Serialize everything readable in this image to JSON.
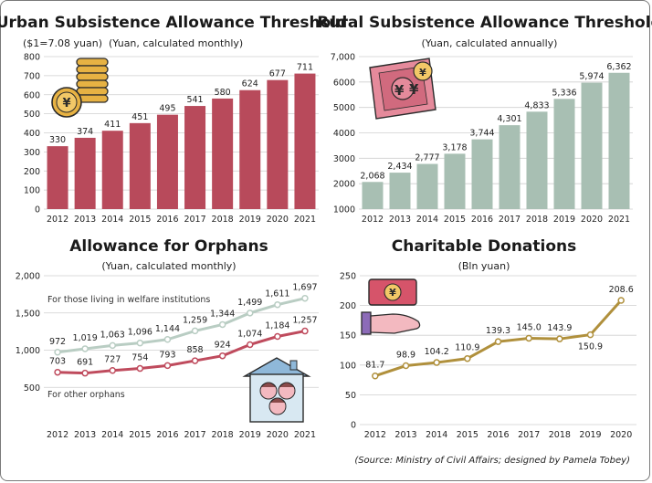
{
  "source_note": "(Source: Ministry of Civil Affairs; designed by Pamela Tobey)",
  "colors": {
    "urban_bar": "#b84a5b",
    "rural_bar": "#a8bfb3",
    "welfare_line": "#b9cdc3",
    "other_line": "#bf4b5d",
    "donation_line": "#b0903c",
    "grid": "#cfcfcf"
  },
  "chart_data": [
    {
      "id": "urban",
      "type": "bar",
      "title": "Urban Subsistence Allowance Threshold",
      "subtitle": "($1=7.08 yuan)  (Yuan, calculated monthly)",
      "categories": [
        "2012",
        "2013",
        "2014",
        "2015",
        "2016",
        "2017",
        "2018",
        "2019",
        "2020",
        "2021"
      ],
      "values": [
        330,
        374,
        411,
        451,
        495,
        541,
        580,
        624,
        677,
        711
      ],
      "value_labels": [
        "330",
        "374",
        "411",
        "451",
        "495",
        "541",
        "580",
        "624",
        "677",
        "711"
      ],
      "ylim": [
        0,
        800
      ],
      "yticks": [
        "0",
        "100",
        "200",
        "300",
        "400",
        "500",
        "600",
        "700",
        "800"
      ],
      "grid": true,
      "icon": "coin-stack-icon"
    },
    {
      "id": "rural",
      "type": "bar",
      "title": "Rural Subsistence Allowance Threshold",
      "subtitle": "(Yuan, calculated annually)",
      "categories": [
        "2012",
        "2013",
        "2014",
        "2015",
        "2016",
        "2017",
        "2018",
        "2019",
        "2020",
        "2021"
      ],
      "values": [
        2068,
        2434,
        2777,
        3178,
        3744,
        4301,
        4833,
        5336,
        5974,
        6362
      ],
      "value_labels": [
        "2,068",
        "2,434",
        "2,777",
        "3,178",
        "3,744",
        "4,301",
        "4,833",
        "5,336",
        "5,974",
        "6,362"
      ],
      "ylim": [
        1000,
        7000
      ],
      "yticks": [
        "1000",
        "2000",
        "3000",
        "4000",
        "5000",
        "6000",
        "7,000"
      ],
      "grid": true,
      "icon": "yuan-banknote-icon"
    },
    {
      "id": "orphans",
      "type": "line",
      "title": "Allowance for Orphans",
      "subtitle": "(Yuan, calculated monthly)",
      "x": [
        "2012",
        "2013",
        "2014",
        "2015",
        "2016",
        "2017",
        "2018",
        "2019",
        "2020",
        "2021"
      ],
      "series": [
        {
          "name": "For those living in welfare institutions",
          "values": [
            972,
            1019,
            1063,
            1096,
            1144,
            1259,
            1344,
            1499,
            1611,
            1697
          ],
          "labels": [
            "972",
            "1,019",
            "1,063",
            "1,096",
            "1,144",
            "1,259",
            "1,344",
            "1,499",
            "1,611",
            "1,697"
          ]
        },
        {
          "name": "For other orphans",
          "values": [
            703,
            691,
            727,
            754,
            793,
            858,
            924,
            1074,
            1184,
            1257
          ],
          "labels": [
            "703",
            "691",
            "727",
            "754",
            "793",
            "858",
            "924",
            "1,074",
            "1,184",
            "1,257"
          ]
        }
      ],
      "ylim": [
        0,
        2000
      ],
      "yticks": [
        "500",
        "1,000",
        "1,500",
        "2,000"
      ],
      "grid": true,
      "icon": "family-house-icon"
    },
    {
      "id": "donations",
      "type": "line",
      "title": "Charitable Donations",
      "subtitle": "(Bln yuan)",
      "x": [
        "2012",
        "2013",
        "2014",
        "2015",
        "2016",
        "2017",
        "2018",
        "2019",
        "2020"
      ],
      "values": [
        81.7,
        98.9,
        104.2,
        110.9,
        139.3,
        145.0,
        143.9,
        150.9,
        208.6
      ],
      "value_labels": [
        "81.7",
        "98.9",
        "104.2",
        "110.9",
        "139.3",
        "145.0",
        "143.9",
        "150.9",
        "208.6"
      ],
      "ylim": [
        0,
        250
      ],
      "yticks": [
        "0",
        "50",
        "100",
        "150",
        "200",
        "250"
      ],
      "grid": true,
      "icon": "hand-money-icon"
    }
  ]
}
